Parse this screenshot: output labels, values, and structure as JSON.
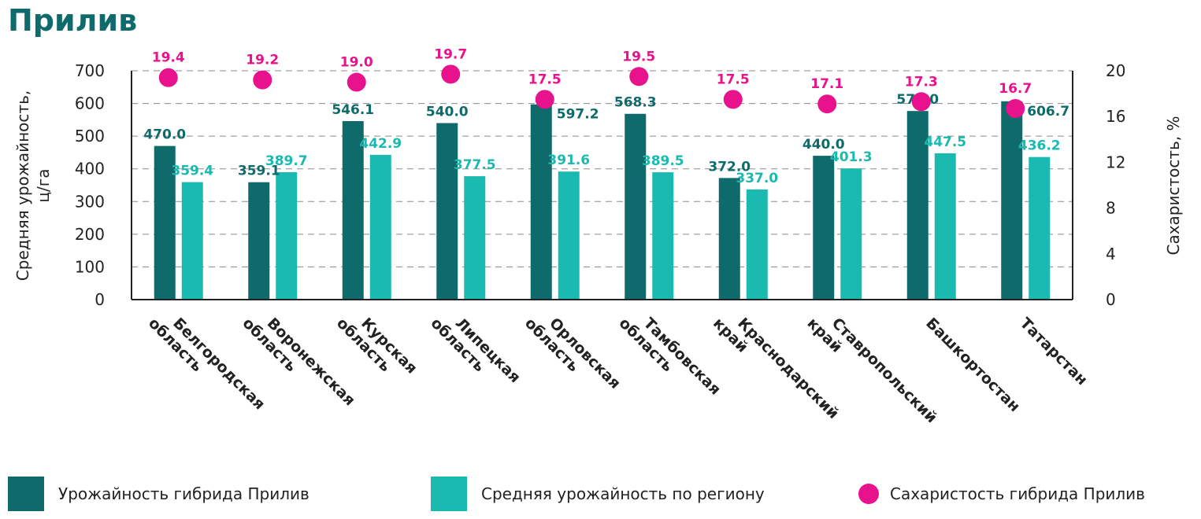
{
  "chart_data": {
    "type": "bar",
    "title": "Прилив",
    "ylabel": "Средняя урожайность, ц/га",
    "y2label": "Сахаристость, %",
    "ylim": [
      0,
      700
    ],
    "y2lim": [
      0,
      20
    ],
    "yticks": [
      "0",
      "100",
      "200",
      "300",
      "400",
      "500",
      "600",
      "700"
    ],
    "y2ticks": [
      "0",
      "4",
      "8",
      "12",
      "16",
      "20"
    ],
    "grid": true,
    "legend_position": "bottom",
    "categories": [
      "Белгородская область",
      "Воронежская область",
      "Курская область",
      "Липецкая область",
      "Орловская область",
      "Тамбовская область",
      "Краснодарский край",
      "Ставропольский край",
      "Башкортостан",
      "Татарстан"
    ],
    "series": [
      {
        "name": "Урожайность гибрида Прилив",
        "type": "bar",
        "axis": "left",
        "color": "#0f6b6b",
        "values": [
          470.0,
          359.1,
          546.1,
          540.0,
          597.2,
          568.3,
          372.0,
          440.0,
          577.0,
          606.7
        ],
        "labels": [
          "470.0",
          "359.1",
          "546.1",
          "540.0",
          "597.2",
          "568.3",
          "372.0",
          "440.0",
          "577.0",
          "606.7"
        ]
      },
      {
        "name": "Средняя урожайность по региону",
        "type": "bar",
        "axis": "left",
        "color": "#1bbab0",
        "values": [
          359.4,
          389.7,
          442.9,
          377.5,
          391.6,
          389.5,
          337.0,
          401.3,
          447.5,
          436.2
        ],
        "labels": [
          "359.4",
          "389.7",
          "442.9",
          "377.5",
          "391.6",
          "389.5",
          "337.0",
          "401.3",
          "447.5",
          "436.2"
        ]
      },
      {
        "name": "Сахаристость гибрида Прилив",
        "type": "scatter",
        "axis": "right",
        "color": "#e8128c",
        "values": [
          19.4,
          19.2,
          19.0,
          19.7,
          17.5,
          19.5,
          17.5,
          17.1,
          17.3,
          16.7
        ],
        "labels": [
          "19.4",
          "19.2",
          "19.0",
          "19.7",
          "17.5",
          "19.5",
          "17.5",
          "17.1",
          "17.3",
          "16.7"
        ]
      }
    ]
  }
}
